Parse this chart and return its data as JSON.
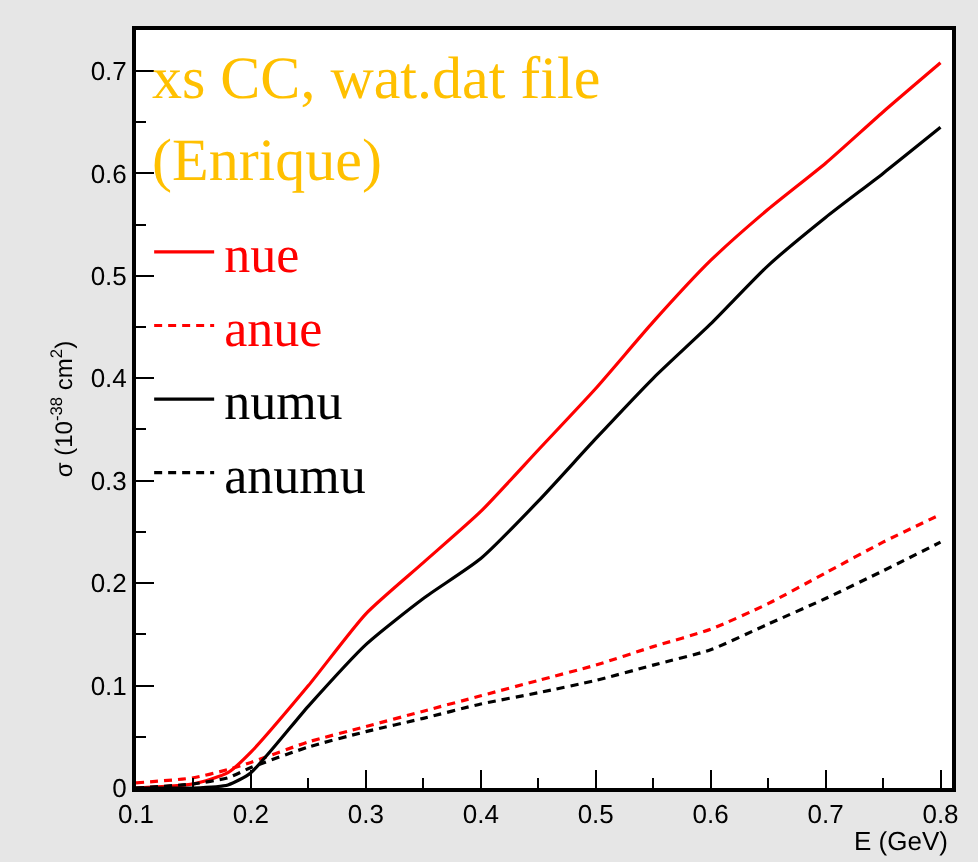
{
  "chart_data": {
    "type": "line",
    "title": "xs CC, wat.dat file (Enrique)",
    "xlabel": "E (GeV)",
    "ylabel": "σ (10$^{-38}$ cm$^{2}$)",
    "x": [
      0.1,
      0.15,
      0.18,
      0.2,
      0.25,
      0.3,
      0.35,
      0.4,
      0.45,
      0.5,
      0.55,
      0.6,
      0.65,
      0.7,
      0.75,
      0.8
    ],
    "series": [
      {
        "name": "nue",
        "color": "#ff0000",
        "line_style": "solid",
        "values": [
          0.0,
          0.004,
          0.015,
          0.035,
          0.1,
          0.17,
          0.22,
          0.27,
          0.33,
          0.39,
          0.455,
          0.515,
          0.565,
          0.61,
          0.66,
          0.708
        ]
      },
      {
        "name": "anue",
        "color": "#ff0000",
        "line_style": "dashed",
        "values": [
          0.005,
          0.01,
          0.018,
          0.025,
          0.045,
          0.06,
          0.075,
          0.09,
          0.105,
          0.12,
          0.138,
          0.155,
          0.18,
          0.21,
          0.24,
          0.267
        ]
      },
      {
        "name": "numu",
        "color": "#000000",
        "line_style": "solid",
        "values": [
          0.0,
          0.0,
          0.003,
          0.015,
          0.08,
          0.14,
          0.185,
          0.224,
          0.28,
          0.341,
          0.4,
          0.453,
          0.51,
          0.557,
          0.6,
          0.645
        ]
      },
      {
        "name": "anumu",
        "color": "#000000",
        "line_style": "dashed",
        "values": [
          0.0,
          0.004,
          0.01,
          0.02,
          0.04,
          0.055,
          0.068,
          0.082,
          0.093,
          0.105,
          0.12,
          0.135,
          0.16,
          0.185,
          0.212,
          0.24
        ]
      }
    ],
    "xlim": [
      0.1,
      0.81
    ],
    "ylim": [
      0,
      0.74
    ],
    "xticks": [
      0.1,
      0.2,
      0.3,
      0.4,
      0.5,
      0.6,
      0.7,
      0.8
    ],
    "yticks": [
      0,
      0.1,
      0.2,
      0.3,
      0.4,
      0.5,
      0.6,
      0.7
    ],
    "grid": false,
    "legend": "top left",
    "marker": "none"
  }
}
